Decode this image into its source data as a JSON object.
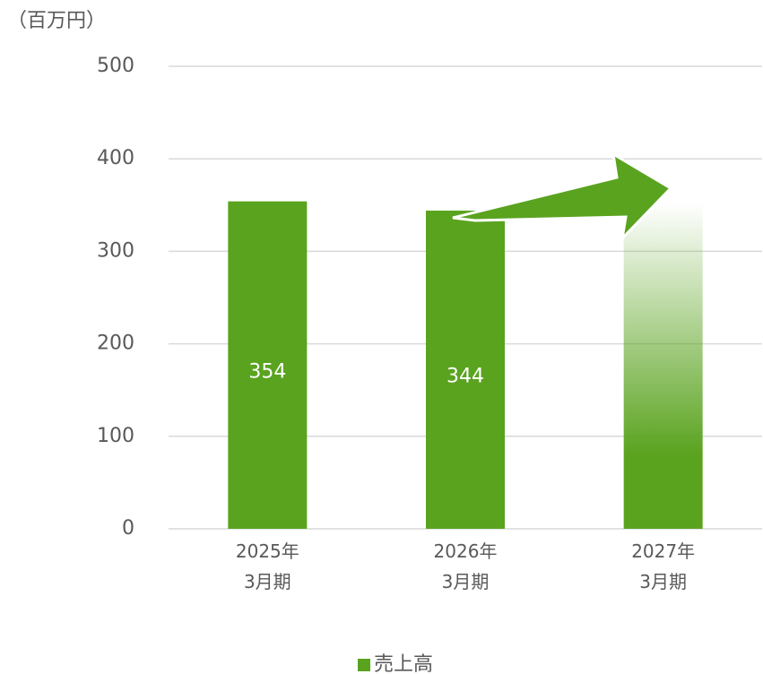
{
  "chart_data": {
    "type": "bar",
    "y_label": "（百万円）",
    "categories": [
      "2025年\n3月期",
      "2026年\n3月期",
      "2027年\n3月期"
    ],
    "series": [
      {
        "name": "売上高",
        "color": "#5aa31f",
        "values": [
          354,
          344,
          400
        ],
        "value_labels": [
          "354",
          "344",
          null
        ],
        "faded": [
          false,
          false,
          true
        ]
      }
    ],
    "ylim": [
      0,
      500
    ],
    "yticks": [
      0,
      100,
      200,
      300,
      400,
      500
    ],
    "grid": true,
    "legend": "bottom"
  }
}
